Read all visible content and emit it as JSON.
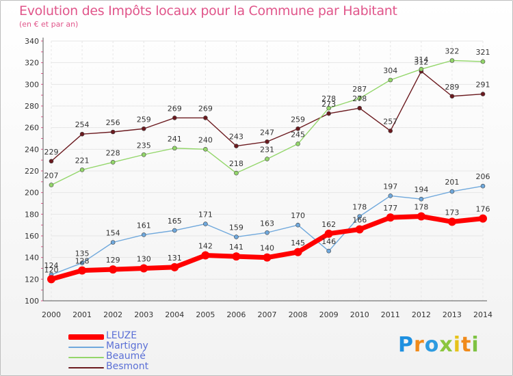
{
  "header": {
    "title": "Evolution des Impôts locaux pour la Commune par Habitant",
    "subtitle": "(en € et par an)"
  },
  "brand": {
    "letters": [
      "P",
      "r",
      "o",
      "x",
      "i",
      "t",
      "i"
    ],
    "colors": [
      "#1e90e0",
      "#f08a1a",
      "#2e9be0",
      "#8cc63f",
      "#e6c21a",
      "#f08a1a",
      "#7ec242"
    ]
  },
  "chart_data": {
    "type": "line",
    "title": "Evolution des Impôts locaux pour la Commune par Habitant",
    "subtitle": "(en € et par an)",
    "xlabel": "",
    "ylabel": "",
    "ylim": [
      100,
      340
    ],
    "yticks": [
      100,
      120,
      140,
      160,
      180,
      200,
      220,
      240,
      260,
      280,
      300,
      320,
      340
    ],
    "grid": true,
    "legend_position": "bottom-left",
    "categories": [
      "2000",
      "2001",
      "2002",
      "2003",
      "2004",
      "2005",
      "2006",
      "2007",
      "2008",
      "2009",
      "2010",
      "2011",
      "2012",
      "2013",
      "2014"
    ],
    "series": [
      {
        "name": "LEUZE",
        "color": "#ff0000",
        "values": [
          120,
          128,
          129,
          130,
          131,
          142,
          141,
          140,
          145,
          162,
          166,
          177,
          178,
          173,
          176
        ],
        "labels": [
          "120",
          "128",
          "129",
          "130",
          "131",
          "142",
          "141",
          "140",
          "145",
          "162",
          "166",
          "177",
          "178",
          "173",
          "176"
        ]
      },
      {
        "name": "Martigny",
        "color": "#6fa8dc",
        "values": [
          124,
          135,
          154,
          161,
          165,
          171,
          159,
          163,
          170,
          146,
          178,
          197,
          194,
          201,
          206
        ],
        "labels": [
          "124",
          "135",
          "154",
          "161",
          "165",
          "171",
          "159",
          "163",
          "170",
          "146",
          "178",
          "197",
          "194",
          "201",
          "206"
        ]
      },
      {
        "name": "Beaumé",
        "color": "#93d66a",
        "values": [
          207,
          221,
          228,
          235,
          241,
          240,
          218,
          231,
          245,
          278,
          287,
          304,
          314,
          322,
          321
        ],
        "labels": [
          "207",
          "221",
          "228",
          "235",
          "241",
          "240",
          "218",
          "231",
          "245",
          "278",
          "287",
          "304",
          "314",
          "322",
          "321"
        ]
      },
      {
        "name": "Besmont",
        "color": "#6b1a1f",
        "values": [
          229,
          254,
          256,
          259,
          269,
          269,
          243,
          247,
          259,
          273,
          278,
          257,
          312,
          289,
          291
        ],
        "labels": [
          "229",
          "254",
          "256",
          "259",
          "269",
          "269",
          "243",
          "247",
          "259",
          "273",
          "278",
          "257",
          "312",
          "289",
          "291"
        ]
      }
    ]
  }
}
